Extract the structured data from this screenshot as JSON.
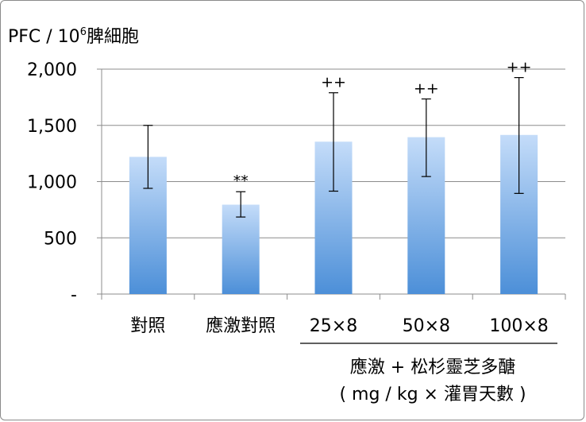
{
  "chart_data": {
    "type": "bar",
    "ylabel_prefix": "PFC / 10",
    "ylabel_sup": "6",
    "ylabel_suffix": "脾細胞",
    "ylim": [
      0,
      2000
    ],
    "yticks": [
      {
        "value": 0,
        "label": "-"
      },
      {
        "value": 500,
        "label": "500"
      },
      {
        "value": 1000,
        "label": "1,000"
      },
      {
        "value": 1500,
        "label": "1,500"
      },
      {
        "value": 2000,
        "label": "2,000"
      }
    ],
    "grid": true,
    "categories": [
      "對照",
      "應激對照",
      "25×8",
      "50×8",
      "100×8"
    ],
    "values": [
      1220,
      795,
      1355,
      1395,
      1415
    ],
    "error_low": [
      940,
      685,
      915,
      1045,
      895
    ],
    "error_high": [
      1500,
      910,
      1790,
      1735,
      1925
    ],
    "annotations": [
      "",
      "**",
      "++",
      "++",
      "++"
    ],
    "group_label_line1": "應激 + 松杉靈芝多醣",
    "group_label_line2": "( mg / kg × 灌胃天數 )",
    "colors": {
      "bar_top": "#c4dcf9",
      "bar_bottom": "#4c8fd8",
      "grid": "#8c8c8c",
      "axis": "#8c8c8c"
    }
  }
}
